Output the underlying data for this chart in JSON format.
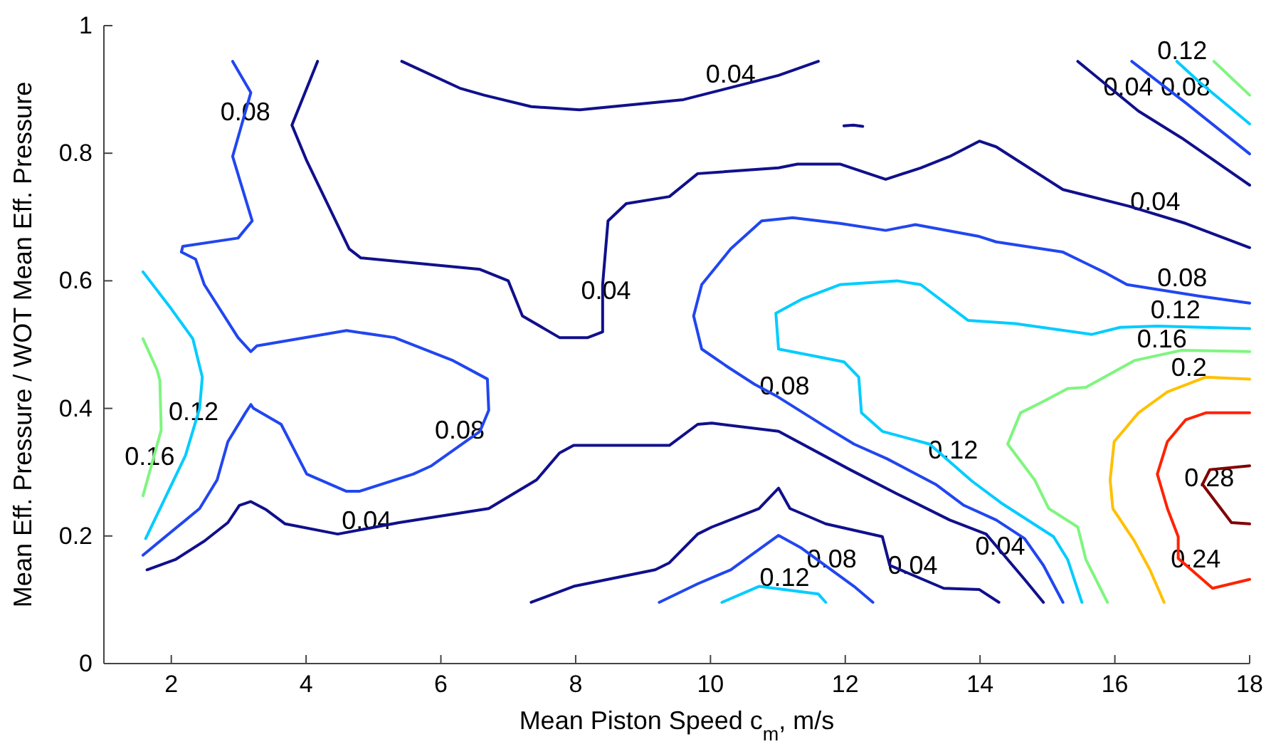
{
  "chart_data": {
    "type": "line",
    "xlabel": "Mean Piston Speed c$_{m}$, m/s",
    "ylabel": "Mean Eff. Pressure / WOT Mean Eff. Pressure",
    "xlim": [
      1,
      18
    ],
    "ylim": [
      0,
      1
    ],
    "xticks": [
      2,
      4,
      6,
      8,
      10,
      12,
      14,
      16,
      18
    ],
    "yticks": [
      0,
      0.2,
      0.4,
      0.6,
      0.8,
      1
    ],
    "series": [
      {
        "color": "#10108c",
        "x": [
          4.17,
          3.79,
          4.01,
          4.64,
          4.81,
          6.58,
          7.0,
          7.21,
          7.76,
          8.18,
          8.4,
          8.4,
          8.48,
          8.75,
          9.39,
          9.81,
          11.01,
          11.29,
          11.92,
          12.6,
          13.12,
          13.55,
          13.99,
          14.24,
          15.23,
          16.21,
          17.05,
          18.0
        ],
        "values": [
          0.944,
          0.844,
          0.788,
          0.65,
          0.636,
          0.618,
          0.6,
          0.545,
          0.511,
          0.511,
          0.52,
          0.594,
          0.694,
          0.721,
          0.732,
          0.768,
          0.777,
          0.783,
          0.783,
          0.759,
          0.777,
          0.795,
          0.819,
          0.81,
          0.743,
          0.717,
          0.69,
          0.652
        ]
      },
      {
        "color": "#10108c",
        "x": [
          5.42,
          6.28,
          6.64,
          7.34,
          8.06,
          9.6,
          11.01,
          11.6
        ],
        "values": [
          0.944,
          0.902,
          0.891,
          0.873,
          0.868,
          0.884,
          0.922,
          0.944
        ]
      },
      {
        "color": "#10108c",
        "x": [
          1.64,
          2.06,
          2.49,
          2.84,
          3.01,
          3.18,
          3.41,
          3.69,
          4.47,
          5.38,
          6.71,
          7.42,
          7.76,
          7.97,
          9.39,
          9.81,
          10.02,
          11.01,
          12.07,
          12.77,
          13.55,
          14.09,
          14.66,
          14.94
        ],
        "values": [
          0.147,
          0.163,
          0.192,
          0.221,
          0.248,
          0.254,
          0.241,
          0.219,
          0.203,
          0.221,
          0.243,
          0.288,
          0.33,
          0.342,
          0.342,
          0.375,
          0.377,
          0.364,
          0.304,
          0.266,
          0.225,
          0.203,
          0.132,
          0.096
        ]
      },
      {
        "color": "#10108c",
        "x": [
          7.34,
          7.97,
          9.18,
          9.39,
          9.81,
          10.02,
          10.72,
          11.01,
          11.18,
          11.71,
          12.55,
          12.66,
          13.46,
          13.99,
          14.28
        ],
        "values": [
          0.096,
          0.121,
          0.147,
          0.158,
          0.203,
          0.214,
          0.243,
          0.275,
          0.243,
          0.219,
          0.199,
          0.154,
          0.118,
          0.116,
          0.096
        ]
      },
      {
        "color": "#10108c",
        "x": [
          15.45,
          16.35,
          16.99,
          18.0
        ],
        "values": [
          0.944,
          0.866,
          0.824,
          0.75
        ]
      },
      {
        "color": "#2146f0",
        "x": [
          2.91,
          3.18,
          2.91,
          3.2,
          2.99,
          2.17,
          2.15,
          2.36,
          2.49,
          2.99,
          3.18,
          3.27,
          4.6,
          5.31,
          6.18,
          6.69,
          6.71,
          6.58,
          5.86,
          5.59,
          4.79,
          4.6,
          4.01,
          3.63,
          3.22,
          3.18,
          3.1,
          2.84,
          2.68,
          2.42,
          1.58
        ],
        "values": [
          0.944,
          0.895,
          0.795,
          0.694,
          0.667,
          0.654,
          0.645,
          0.634,
          0.594,
          0.511,
          0.489,
          0.498,
          0.522,
          0.511,
          0.475,
          0.446,
          0.397,
          0.364,
          0.31,
          0.297,
          0.27,
          0.27,
          0.297,
          0.375,
          0.4,
          0.406,
          0.393,
          0.348,
          0.288,
          0.243,
          0.17
        ]
      },
      {
        "color": "#2146f0",
        "x": [
          18.0,
          17.26,
          16.18,
          15.87,
          15.23,
          14.24,
          13.97,
          13.04,
          12.6,
          11.92,
          11.22,
          10.76,
          10.3,
          9.87,
          9.75,
          9.87,
          10.27,
          10.65,
          10.97,
          11.71,
          12.13,
          12.62,
          13.34,
          13.76,
          14.24,
          14.66,
          14.94,
          15.23
        ],
        "values": [
          0.565,
          0.576,
          0.594,
          0.612,
          0.645,
          0.661,
          0.67,
          0.688,
          0.679,
          0.69,
          0.699,
          0.694,
          0.65,
          0.594,
          0.545,
          0.493,
          0.464,
          0.438,
          0.42,
          0.371,
          0.344,
          0.321,
          0.281,
          0.248,
          0.225,
          0.196,
          0.154,
          0.096
        ]
      },
      {
        "color": "#2146f0",
        "x": [
          9.24,
          9.81,
          10.3,
          11.01,
          11.35,
          12.13,
          12.41
        ],
        "values": [
          0.096,
          0.125,
          0.147,
          0.201,
          0.181,
          0.121,
          0.096
        ]
      },
      {
        "color": "#2146f0",
        "x": [
          16.25,
          17.05,
          18.0
        ],
        "values": [
          0.944,
          0.879,
          0.799
        ]
      },
      {
        "color": "#00ccff",
        "x": [
          18.0,
          16.63,
          16.08,
          15.66,
          14.52,
          13.82,
          13.12,
          12.77,
          11.92,
          11.35,
          10.97,
          11.01,
          11.98,
          12.2,
          12.24,
          12.55,
          13.25,
          13.88,
          14.31,
          15.09,
          15.3,
          15.51
        ],
        "values": [
          0.525,
          0.529,
          0.527,
          0.516,
          0.533,
          0.538,
          0.594,
          0.6,
          0.594,
          0.571,
          0.549,
          0.493,
          0.473,
          0.449,
          0.393,
          0.364,
          0.344,
          0.286,
          0.252,
          0.199,
          0.163,
          0.096
        ]
      },
      {
        "color": "#00ccff",
        "x": [
          1.58,
          2.0,
          2.32,
          2.46,
          2.42,
          2.21,
          1.62
        ],
        "values": [
          0.614,
          0.556,
          0.509,
          0.449,
          0.4,
          0.326,
          0.196
        ]
      },
      {
        "color": "#00ccff",
        "x": [
          10.17,
          10.72,
          11.6,
          11.71
        ],
        "values": [
          0.096,
          0.121,
          0.109,
          0.096
        ]
      },
      {
        "color": "#00ccff",
        "x": [
          16.92,
          17.26,
          18.0
        ],
        "values": [
          0.944,
          0.911,
          0.846
        ]
      },
      {
        "color": "#7ff57f",
        "x": [
          18.0,
          16.99,
          16.29,
          15.57,
          15.3,
          14.94,
          14.6,
          14.41,
          14.81,
          15.02,
          15.45,
          15.57,
          15.89
        ],
        "values": [
          0.489,
          0.491,
          0.475,
          0.433,
          0.431,
          0.411,
          0.393,
          0.344,
          0.288,
          0.243,
          0.214,
          0.163,
          0.096
        ]
      },
      {
        "color": "#7ff57f",
        "x": [
          1.58,
          1.79,
          1.83,
          1.85,
          1.58
        ],
        "values": [
          0.509,
          0.46,
          0.444,
          0.366,
          0.263
        ]
      },
      {
        "color": "#7ff57f",
        "x": [
          17.47,
          18.0
        ],
        "values": [
          0.944,
          0.891
        ]
      },
      {
        "color": "#ffc000",
        "x": [
          18.0,
          17.35,
          16.78,
          16.35,
          15.99,
          15.93,
          15.97,
          16.29,
          16.52,
          16.73
        ],
        "values": [
          0.446,
          0.449,
          0.426,
          0.393,
          0.348,
          0.288,
          0.243,
          0.192,
          0.147,
          0.096
        ]
      },
      {
        "color": "#ff2200",
        "x": [
          18.0,
          17.35,
          17.05,
          16.78,
          16.63,
          16.78,
          16.94,
          16.94,
          17.45,
          18.0
        ],
        "values": [
          0.393,
          0.393,
          0.382,
          0.348,
          0.297,
          0.243,
          0.199,
          0.165,
          0.118,
          0.132
        ]
      },
      {
        "color": "#800000",
        "x": [
          18.0,
          17.41,
          17.3,
          17.73,
          18.0
        ],
        "values": [
          0.31,
          0.304,
          0.281,
          0.221,
          0.219
        ]
      },
      {
        "color": "#10108c",
        "x": [
          11.98,
          12.12,
          12.26
        ],
        "values": [
          0.843,
          0.844,
          0.842
        ]
      }
    ],
    "annotations": [
      {
        "text": "0.04",
        "x": 8.45,
        "y": 0.56
      },
      {
        "text": "0.04",
        "x": 16.6,
        "y": 0.7
      },
      {
        "text": "0.04",
        "x": 10.3,
        "y": 0.9
      },
      {
        "text": "0.04",
        "x": 4.9,
        "y": 0.2
      },
      {
        "text": "0.04",
        "x": 14.3,
        "y": 0.16
      },
      {
        "text": "0.04",
        "x": 13.0,
        "y": 0.13
      },
      {
        "text": "0.04",
        "x": 16.2,
        "y": 0.879
      },
      {
        "text": "0.08",
        "x": 3.1,
        "y": 0.84
      },
      {
        "text": "0.08",
        "x": 6.28,
        "y": 0.341
      },
      {
        "text": "0.08",
        "x": 17.0,
        "y": 0.58
      },
      {
        "text": "0.08",
        "x": 11.1,
        "y": 0.411
      },
      {
        "text": "0.08",
        "x": 11.8,
        "y": 0.14
      },
      {
        "text": "0.08",
        "x": 17.05,
        "y": 0.879
      },
      {
        "text": "0.12",
        "x": 16.9,
        "y": 0.53
      },
      {
        "text": "0.12",
        "x": 13.6,
        "y": 0.31
      },
      {
        "text": "0.12",
        "x": 2.33,
        "y": 0.37
      },
      {
        "text": "0.12",
        "x": 11.1,
        "y": 0.11
      },
      {
        "text": "0.12",
        "x": 17.0,
        "y": 0.936
      },
      {
        "text": "0.16",
        "x": 16.7,
        "y": 0.484
      },
      {
        "text": "0.16",
        "x": 1.68,
        "y": 0.3
      },
      {
        "text": "0.2",
        "x": 17.1,
        "y": 0.44
      },
      {
        "text": "0.24",
        "x": 17.2,
        "y": 0.14
      },
      {
        "text": "0.28",
        "x": 17.4,
        "y": 0.267
      }
    ]
  }
}
